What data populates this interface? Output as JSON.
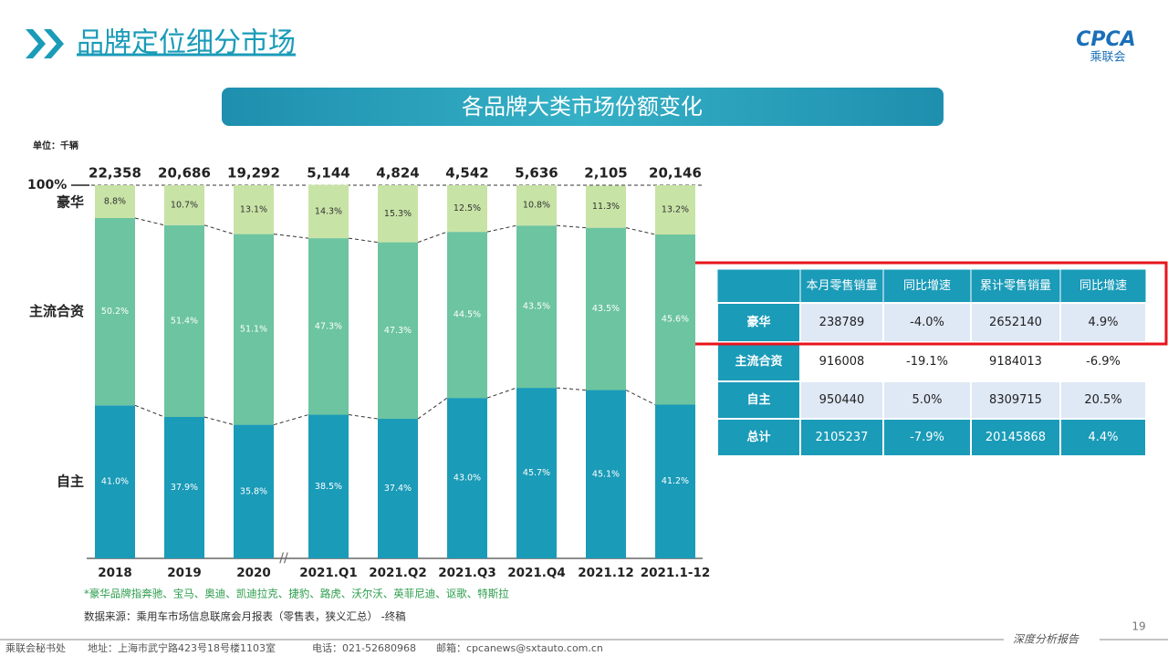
{
  "header": {
    "title": "品牌定位细分市场",
    "logo": "CPCA",
    "logo_sub": "乘联会"
  },
  "chart_data": {
    "type": "bar",
    "stacked": true,
    "title": "各品牌大类市场份额变化",
    "unit": "单位：千辆",
    "categories": [
      "2018",
      "2019",
      "2020",
      "2021.Q1",
      "2021.Q2",
      "2021.Q3",
      "2021.Q4",
      "2021.12",
      "2021.1-12"
    ],
    "totals": {
      "values": [
        22358,
        20686,
        19292,
        5144,
        4824,
        4542,
        5636,
        2105,
        20146
      ],
      "value_labels": [
        "22,358",
        "20,686",
        "19,292",
        "5,144",
        "4,824",
        "4,542",
        "5,636",
        "2,105",
        "20,146"
      ]
    },
    "series": [
      {
        "name": "自主",
        "color": "#1a9bb8",
        "values": [
          41.0,
          37.9,
          35.8,
          38.5,
          37.4,
          43.0,
          45.7,
          45.1,
          41.2
        ],
        "value_labels": [
          "41.0%",
          "37.9%",
          "35.8%",
          "38.5%",
          "37.4%",
          "43.0%",
          "45.7%",
          "45.1%",
          "41.2%"
        ]
      },
      {
        "name": "主流合资",
        "color": "#6cc4a0",
        "values": [
          50.2,
          51.4,
          51.1,
          47.3,
          47.3,
          44.5,
          43.5,
          43.5,
          45.6
        ],
        "value_labels": [
          "50.2%",
          "51.4%",
          "51.1%",
          "47.3%",
          "47.3%",
          "44.5%",
          "43.5%",
          "43.5%",
          "45.6%"
        ]
      },
      {
        "name": "豪华",
        "color": "#c8e3a6",
        "values": [
          8.8,
          10.7,
          13.1,
          14.3,
          15.3,
          12.5,
          10.8,
          11.3,
          13.2
        ],
        "value_labels": [
          "8.8%",
          "10.7%",
          "13.1%",
          "14.3%",
          "15.3%",
          "12.5%",
          "10.8%",
          "11.3%",
          "13.2%"
        ]
      }
    ],
    "ylim": [
      0,
      100
    ],
    "yticks": [
      {
        "value": 100,
        "label": "100%"
      }
    ]
  },
  "table": {
    "columns": [
      "本月零售销量",
      "同比增速",
      "累计零售销量",
      "同比增速"
    ],
    "rows": [
      [
        "豪华",
        "238789",
        "-4.0%",
        "2652140",
        "4.9%"
      ],
      [
        "主流合资",
        "916008",
        "-19.1%",
        "9184013",
        "-6.9%"
      ],
      [
        "自主",
        "950440",
        "5.0%",
        "8309715",
        "20.5%"
      ],
      [
        "总计",
        "2105237",
        "-7.9%",
        "20145868",
        "4.4%"
      ]
    ]
  },
  "notes": [
    "*豪华品牌指奔驰、宝马、奥迪、凯迪拉克、捷豹、路虎、沃尔沃、英菲尼迪、讴歌、特斯拉",
    "数据来源：乘用车市场信息联席会月报表（零售表，狭义汇总） -终稿"
  ],
  "footer": {
    "org": "乘联会秘书处",
    "address": "地址：上海市武宁路423号18号楼1103室",
    "phone": "电话：021-52680968",
    "email": "邮箱：cpcanews@sxtauto.com.cn",
    "tag": "深度分析报告",
    "page": "19"
  }
}
